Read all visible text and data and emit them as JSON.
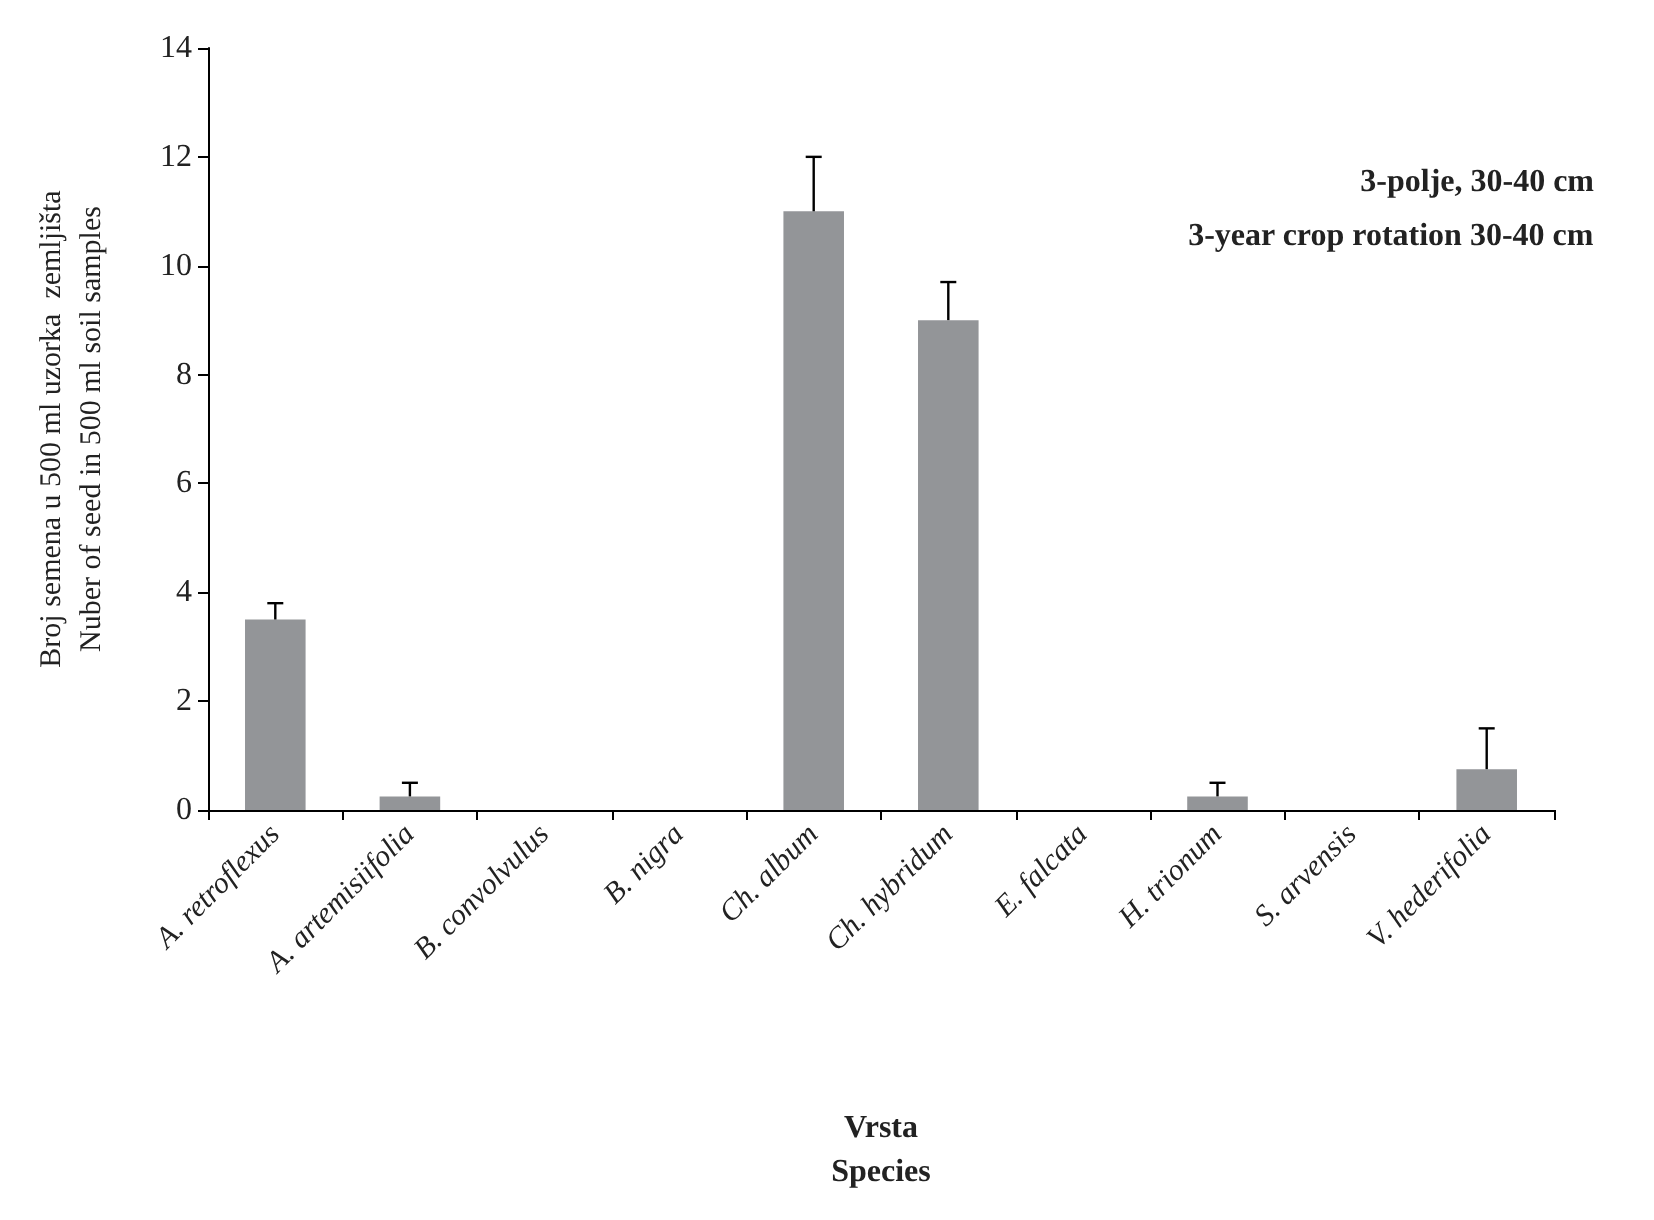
{
  "chart_data": {
    "type": "bar",
    "ylabel": "Broj semena u 500 ml uzorka  zemljišta\nNuber of seed in 500 ml soil samples",
    "xlabel": "Vrsta\nSpecies",
    "categories": [
      "A. retroflexus",
      "A. artemisiifolia",
      "B. convolvulus",
      "B. nigra",
      "Ch. album",
      "Ch. hybridum",
      "E. falcata",
      "H. trionum",
      "S. arvensis",
      "V. hederifolia"
    ],
    "values": [
      3.5,
      0.25,
      0,
      0,
      11,
      9,
      0,
      0.25,
      0,
      0.75
    ],
    "errors": [
      [
        3.5,
        3.8
      ],
      [
        0.25,
        0.5
      ],
      null,
      null,
      [
        11,
        12
      ],
      [
        9,
        9.7
      ],
      null,
      [
        0.25,
        0.5
      ],
      null,
      [
        0.75,
        1.5
      ]
    ],
    "color": "#939598",
    "ylim": [
      0,
      14
    ],
    "yticks": [
      0,
      2,
      4,
      6,
      8,
      10,
      12,
      14
    ],
    "grid": false,
    "annotations": [
      "3-polje, 30-40 cm",
      "3-year crop rotation 30-40 cm"
    ]
  }
}
